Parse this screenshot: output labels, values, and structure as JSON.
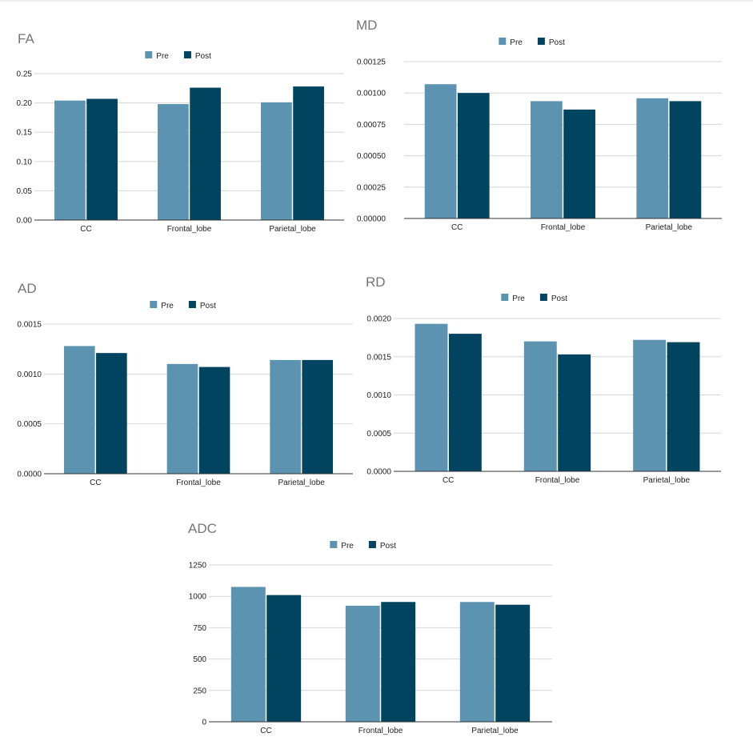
{
  "colors": {
    "pre": "#5b93b0",
    "post": "#00445f"
  },
  "chart_data": [
    {
      "type": "bar",
      "title": "FA",
      "categories": [
        "CC",
        "Frontal_lobe",
        "Parietal_lobe"
      ],
      "series": [
        {
          "name": "Pre",
          "values": [
            0.204,
            0.198,
            0.201
          ]
        },
        {
          "name": "Post",
          "values": [
            0.207,
            0.226,
            0.228
          ]
        }
      ],
      "ylim": [
        0,
        0.25
      ],
      "yticks": [
        "0.00",
        "0.05",
        "0.10",
        "0.15",
        "0.20",
        "0.25"
      ],
      "legend": "top-center"
    },
    {
      "type": "bar",
      "title": "MD",
      "categories": [
        "CC",
        "Frontal_lobe",
        "Parietal_lobe"
      ],
      "series": [
        {
          "name": "Pre",
          "values": [
            0.00107,
            0.000935,
            0.000958
          ]
        },
        {
          "name": "Post",
          "values": [
            0.001,
            0.000868,
            0.000935
          ]
        }
      ],
      "ylim": [
        0,
        0.00125
      ],
      "yticks": [
        "0.00000",
        "0.00025",
        "0.00050",
        "0.00075",
        "0.00100",
        "0.00125"
      ],
      "legend": "top-center"
    },
    {
      "type": "bar",
      "title": "AD",
      "categories": [
        "CC",
        "Frontal_lobe",
        "Parietal_lobe"
      ],
      "series": [
        {
          "name": "Pre",
          "values": [
            0.00128,
            0.0011,
            0.00114
          ]
        },
        {
          "name": "Post",
          "values": [
            0.00121,
            0.00107,
            0.00114
          ]
        }
      ],
      "ylim": [
        0,
        0.0015
      ],
      "yticks": [
        "0.0000",
        "0.0005",
        "0.0010",
        "0.0015"
      ],
      "legend": "top-center"
    },
    {
      "type": "bar",
      "title": "RD",
      "categories": [
        "CC",
        "Frontal_lobe",
        "Parietal_lobe"
      ],
      "series": [
        {
          "name": "Pre",
          "values": [
            0.00193,
            0.0017,
            0.00172
          ]
        },
        {
          "name": "Post",
          "values": [
            0.0018,
            0.00153,
            0.00169
          ]
        }
      ],
      "ylim": [
        0,
        0.002
      ],
      "yticks": [
        "0.0000",
        "0.0005",
        "0.0010",
        "0.0015",
        "0.0020"
      ],
      "legend": "top-center"
    },
    {
      "type": "bar",
      "title": "ADC",
      "categories": [
        "CC",
        "Frontal_lobe",
        "Parietal_lobe"
      ],
      "series": [
        {
          "name": "Pre",
          "values": [
            1075,
            925,
            955
          ]
        },
        {
          "name": "Post",
          "values": [
            1010,
            955,
            933
          ]
        }
      ],
      "ylim": [
        0,
        1250
      ],
      "yticks": [
        "0",
        "250",
        "500",
        "750",
        "1000",
        "1250"
      ],
      "legend": "top-center"
    }
  ]
}
